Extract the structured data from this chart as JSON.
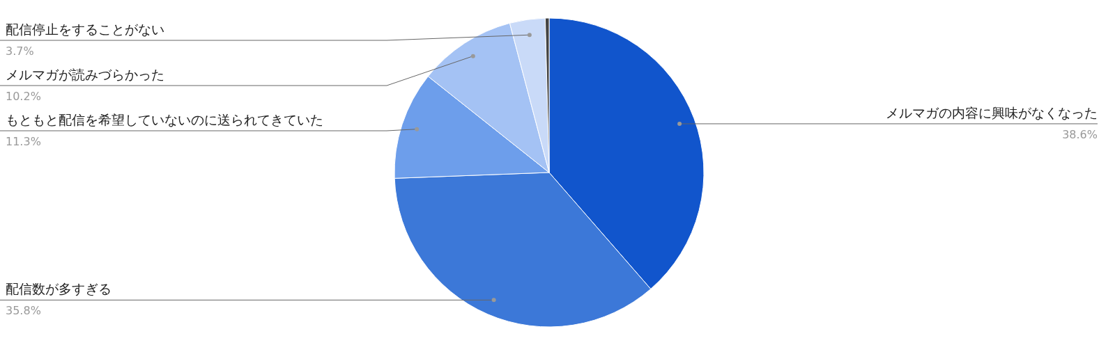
{
  "chart_data": {
    "type": "pie",
    "categories": [
      "メルマガの内容に興味がなくなった",
      "配信数が多すぎる",
      "もともと配信を希望していないのに送られてきていた",
      "メルマガが読みづらかった",
      "配信停止をすることがない",
      null
    ],
    "values": [
      38.6,
      35.8,
      11.3,
      10.2,
      3.7,
      0.4
    ],
    "value_labels": [
      "38.6%",
      "35.8%",
      "11.3%",
      "10.2%",
      "3.7%",
      null
    ],
    "colors": [
      "#1155cc",
      "#3c78d8",
      "#6d9eeb",
      "#a4c2f4",
      "#c9daf8",
      "#434343"
    ]
  }
}
